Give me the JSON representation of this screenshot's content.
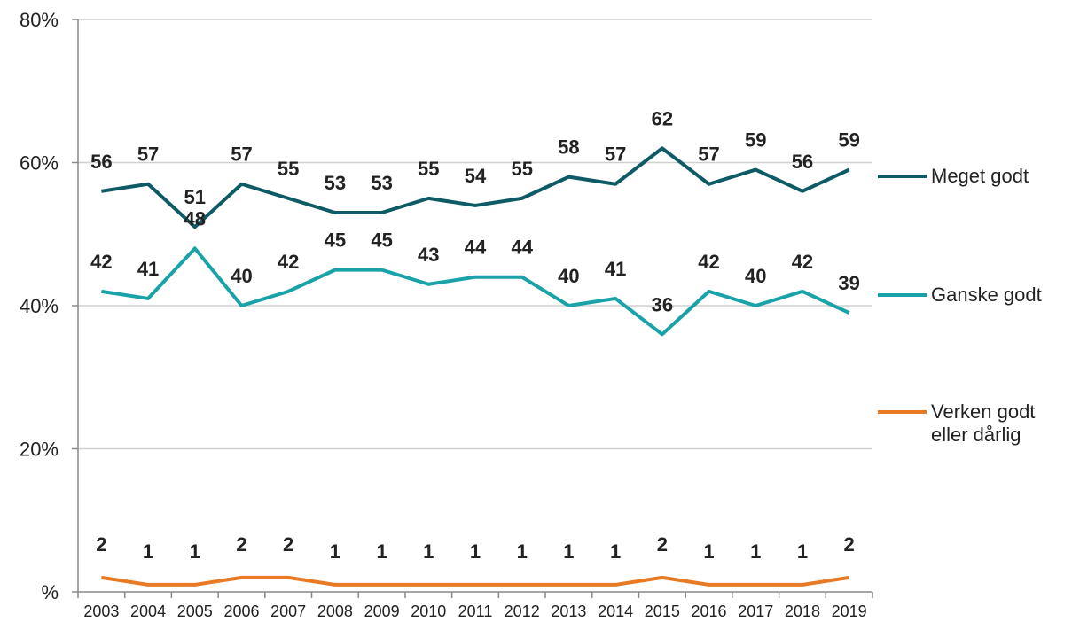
{
  "chart_data": {
    "type": "line",
    "categories": [
      "2003",
      "2004",
      "2005",
      "2006",
      "2007",
      "2008",
      "2009",
      "2010",
      "2011",
      "2012",
      "2013",
      "2014",
      "2015",
      "2016",
      "2017",
      "2018",
      "2019"
    ],
    "series": [
      {
        "name": "Meget godt",
        "color": "#0e5b65",
        "values": [
          56,
          57,
          51,
          57,
          55,
          53,
          53,
          55,
          54,
          55,
          58,
          57,
          62,
          57,
          59,
          56,
          59
        ]
      },
      {
        "name": "Ganske godt",
        "color": "#19a3a8",
        "values": [
          42,
          41,
          48,
          40,
          42,
          45,
          45,
          43,
          44,
          44,
          40,
          41,
          36,
          42,
          40,
          42,
          39
        ]
      },
      {
        "name": "Verken godt eller dårlig",
        "color": "#e87a24",
        "values": [
          2,
          1,
          1,
          2,
          2,
          1,
          1,
          1,
          1,
          1,
          1,
          1,
          2,
          1,
          1,
          1,
          2
        ]
      }
    ],
    "ylim": [
      0,
      80
    ],
    "yticks": [
      {
        "value": 0,
        "label": "%"
      },
      {
        "value": 20,
        "label": "20%"
      },
      {
        "value": 40,
        "label": "40%"
      },
      {
        "value": 60,
        "label": "60%"
      },
      {
        "value": 80,
        "label": "80%"
      }
    ],
    "grid": true
  }
}
